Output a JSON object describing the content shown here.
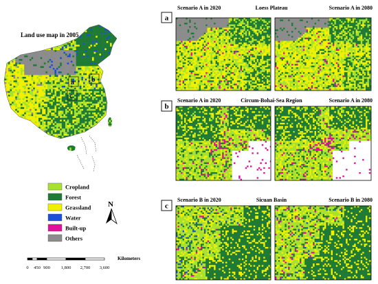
{
  "overview": {
    "title": "Land use map in 2005",
    "markers": [
      "a",
      "b",
      "c"
    ]
  },
  "legend": {
    "items": [
      {
        "label": "Cropland",
        "color": "#a6e22e"
      },
      {
        "label": "Forest",
        "color": "#1f7a36"
      },
      {
        "label": "Grassland",
        "color": "#f0f000"
      },
      {
        "label": "Water",
        "color": "#1e4fd8"
      },
      {
        "label": "Built-up",
        "color": "#e0119a"
      },
      {
        "label": "Others",
        "color": "#8c8c8c"
      }
    ]
  },
  "north": {
    "label": "N"
  },
  "scale": {
    "ticks": [
      "0",
      "450",
      "900",
      "1,800",
      "2,700",
      "3,600"
    ],
    "unit": "Kilometers"
  },
  "rows": [
    {
      "letter": "a",
      "region": "Loess Plateau",
      "left": "Scenario A in 2020",
      "right": "Scenario A in 2080"
    },
    {
      "letter": "b",
      "region": "Circum-Bohai-Sea Region",
      "left": "Scenario A in 2020",
      "right": "Scenario A in 2080"
    },
    {
      "letter": "c",
      "region": "Sicuan Basin",
      "left": "Scenario B in 2020",
      "right": "Scenario B in 2080"
    }
  ]
}
